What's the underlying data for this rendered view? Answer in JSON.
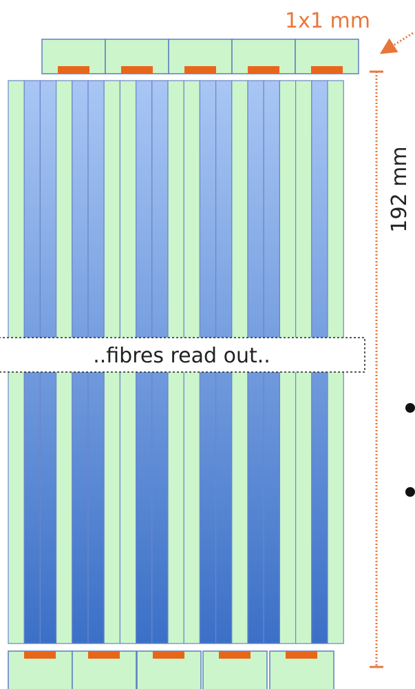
{
  "labels": {
    "pixel_size": "1x1 mm",
    "length": "192 mm",
    "gap_note": "..fibres read out.."
  }
}
